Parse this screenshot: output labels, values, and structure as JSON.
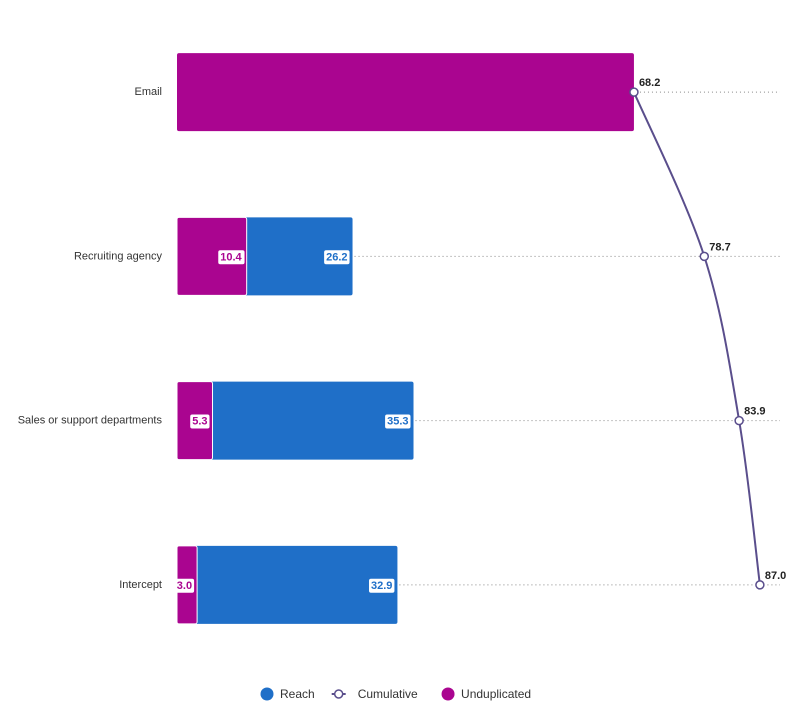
{
  "chart_data": {
    "type": "bar",
    "categories": [
      "Email",
      "Recruiting agency",
      "Sales or support departments",
      "Intercept"
    ],
    "xlim": [
      0,
      90
    ],
    "series": [
      {
        "name": "Reach",
        "color": "#1f6fc8",
        "values": [
          null,
          26.2,
          35.3,
          32.9
        ]
      },
      {
        "name": "Cumulative",
        "type": "line",
        "color": "#5a4e8c",
        "values": [
          68.2,
          78.7,
          83.9,
          87.0
        ],
        "value_labels": [
          "68.2",
          "78.7",
          "83.9",
          "87.0"
        ]
      },
      {
        "name": "Unduplicated",
        "color": "#aa0590",
        "values": [
          68.2,
          10.4,
          5.3,
          3.0
        ],
        "value_labels": [
          null,
          "10.4",
          "5.3",
          "3.0"
        ]
      }
    ]
  }
}
